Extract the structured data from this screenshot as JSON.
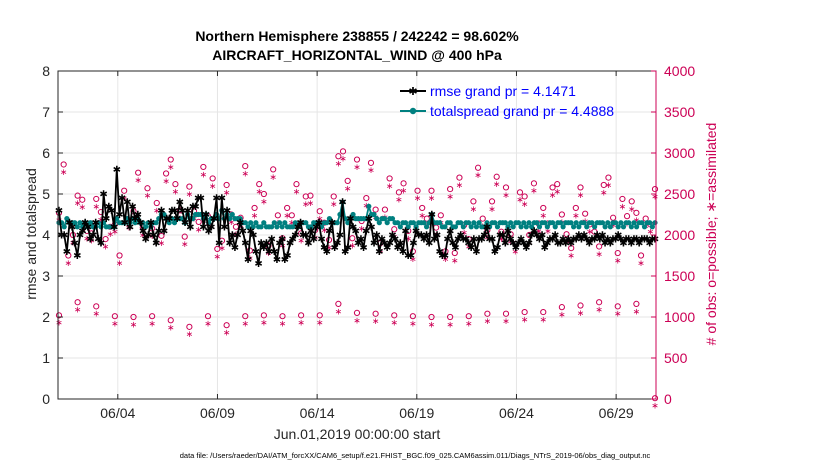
{
  "chart_data": {
    "type": "line",
    "title": "Northern Hemisphere 238855 / 242242 = 98.602%",
    "subtitle": "AIRCRAFT_HORIZONTAL_WIND @ 400 hPa",
    "xlabel": "Jun.01,2019 00:00:00 start",
    "ylabel": "rmse and totalspread",
    "ylabel_right": "# of obs: o=possible; ∗=assimilated",
    "footnote": "data file: /Users/raeder/DAI/ATM_forcXX/CAM6_setup/f.e21.FHIST_BGC.f09_025.CAM6assim.011/Diags_NTrS_2019-06/obs_diag_output.nc",
    "xlim": [
      1.0,
      31.0
    ],
    "ylim": [
      0,
      8
    ],
    "ylim_right": [
      0,
      4000
    ],
    "x_tick_values": [
      4,
      9,
      14,
      19,
      24,
      29
    ],
    "x_tick_labels": [
      "06/04",
      "06/09",
      "06/14",
      "06/19",
      "06/24",
      "06/29"
    ],
    "y_ticks": [
      "0",
      "1",
      "2",
      "3",
      "4",
      "5",
      "6",
      "7",
      "8"
    ],
    "y_ticks_right": [
      "0",
      "500",
      "1000",
      "1500",
      "2000",
      "2500",
      "3000",
      "3500",
      "4000"
    ],
    "legend_position": "top-right",
    "colors": {
      "rmse": "#000000",
      "totalspread": "#008080",
      "obs": "#cc0055",
      "legend_text": "#0000ff",
      "grid": "#e6e6e6",
      "axis": "#262626"
    },
    "series": [
      {
        "name": "rmse grand pr = 4.1471",
        "values": [
          4.6,
          4.0,
          4.0,
          3.6,
          4.3,
          4.2,
          3.8,
          3.5,
          4.0,
          4.1,
          4.3,
          4.2,
          3.9,
          4.0,
          4.3,
          3.9,
          3.8,
          5.0,
          4.4,
          4.7,
          4.6,
          4.2,
          5.6,
          4.5,
          4.9,
          4.3,
          4.8,
          4.2,
          4.7,
          4.4,
          4.5,
          4.3,
          4.1,
          3.9,
          4.0,
          4.3,
          4.0,
          3.8,
          4.1,
          4.6,
          4.1,
          4.4,
          4.4,
          4.6,
          4.6,
          4.4,
          4.8,
          4.6,
          4.3,
          4.6,
          4.2,
          4.7,
          4.7,
          4.9,
          4.9,
          4.2,
          4.5,
          4.1,
          4.2,
          4.4,
          4.9,
          3.8,
          4.9,
          4.2,
          4.6,
          3.8,
          4.0,
          3.7,
          4.0,
          4.3,
          4.1,
          3.8,
          3.4,
          4.1,
          4.0,
          3.6,
          3.3,
          3.8,
          3.7,
          3.8,
          3.6,
          3.9,
          3.6,
          3.4,
          3.8,
          3.9,
          3.4,
          3.5,
          3.8,
          3.9,
          4.0,
          4.2,
          4.3,
          4.0,
          4.0,
          3.8,
          4.1,
          3.9,
          4.2,
          4.3,
          3.9,
          3.7,
          3.6,
          4.1,
          4.3,
          3.7,
          3.8,
          4.0,
          4.8,
          3.6,
          3.7,
          4.4,
          4.2,
          4.1,
          3.8,
          3.9,
          3.7,
          4.1,
          4.4,
          4.2,
          3.8,
          4.0,
          3.6,
          3.9,
          3.8,
          3.7,
          3.8,
          4.0,
          3.9,
          3.7,
          3.8,
          3.6,
          4.1,
          3.5,
          3.5,
          3.8,
          4.1,
          4.0,
          4.0,
          3.9,
          4.0,
          3.8,
          4.5,
          3.9,
          4.0,
          3.6,
          3.5,
          3.5,
          3.9,
          4.1,
          3.8,
          3.7,
          3.9,
          4.0,
          3.9,
          3.9,
          3.8,
          3.7,
          3.9,
          3.6,
          3.9,
          3.9,
          4.0,
          4.2,
          3.9,
          3.9,
          3.6,
          3.7,
          4.0,
          4.0,
          3.8,
          4.1,
          3.9,
          3.8,
          3.7,
          3.8,
          3.9,
          3.8,
          3.7,
          3.8,
          4.0,
          4.1,
          4.0,
          3.9,
          4.0,
          3.7,
          3.8,
          3.9,
          3.9,
          4.0,
          3.8,
          3.8,
          3.9,
          3.8,
          3.9,
          3.8,
          3.9,
          3.9,
          4.0,
          3.9,
          4.0,
          3.9,
          3.8,
          3.9,
          3.9,
          4.0,
          3.9,
          4.0,
          3.8,
          3.9,
          3.8,
          3.9,
          3.9,
          4.0,
          3.9,
          3.8,
          3.9,
          3.9,
          3.8,
          3.9,
          3.9,
          3.8,
          3.9,
          3.9,
          3.9,
          3.8,
          3.9,
          3.9
        ]
      },
      {
        "name": "totalspread grand pr = 4.4888",
        "values": [
          4.3,
          4.3,
          4.2,
          4.4,
          4.3,
          4.3,
          4.3,
          4.2,
          4.3,
          4.2,
          4.3,
          4.2,
          4.3,
          4.2,
          4.2,
          4.3,
          4.2,
          4.3,
          4.2,
          4.2,
          4.2,
          4.2,
          4.4,
          4.3,
          4.3,
          4.3,
          4.4,
          4.3,
          4.4,
          4.3,
          4.4,
          4.3,
          4.3,
          4.2,
          4.3,
          4.2,
          4.3,
          4.3,
          4.4,
          4.5,
          4.5,
          4.4,
          4.3,
          4.4,
          4.3,
          4.4,
          4.4,
          4.4,
          4.3,
          4.5,
          4.4,
          4.4,
          4.5,
          4.5,
          4.5,
          4.4,
          4.5,
          4.3,
          4.4,
          4.4,
          4.5,
          4.4,
          4.6,
          4.4,
          4.5,
          4.4,
          4.5,
          4.4,
          4.4,
          4.4,
          4.3,
          4.3,
          4.2,
          4.3,
          4.2,
          4.3,
          4.2,
          4.2,
          4.3,
          4.2,
          4.2,
          4.2,
          4.3,
          4.2,
          4.3,
          4.2,
          4.3,
          4.2,
          4.2,
          4.2,
          4.3,
          4.2,
          4.3,
          4.3,
          4.3,
          4.2,
          4.2,
          4.3,
          4.3,
          4.3,
          4.2,
          4.3,
          4.3,
          4.4,
          4.3,
          4.3,
          4.3,
          4.5,
          4.8,
          4.4,
          4.3,
          4.4,
          4.5,
          4.4,
          4.4,
          4.4,
          4.4,
          4.4,
          4.7,
          4.5,
          4.5,
          4.4,
          4.3,
          4.4,
          4.4,
          4.3,
          4.4,
          4.4,
          4.3,
          4.3,
          4.2,
          4.3,
          4.3,
          4.2,
          4.3,
          4.3,
          4.2,
          4.3,
          4.3,
          4.3,
          4.2,
          4.3,
          4.5,
          4.3,
          4.3,
          4.3,
          4.2,
          4.2,
          4.3,
          4.3,
          4.2,
          4.2,
          4.3,
          4.3,
          4.2,
          4.3,
          4.3,
          4.2,
          4.3,
          4.2,
          4.3,
          4.2,
          4.2,
          4.3,
          4.2,
          4.3,
          4.3,
          4.2,
          4.3,
          4.3,
          4.3,
          4.2,
          4.3,
          4.2,
          4.3,
          4.3,
          4.2,
          4.3,
          4.2,
          4.3,
          4.2,
          4.3,
          4.3,
          4.2,
          4.3,
          4.3,
          4.2,
          4.3,
          4.3,
          4.2,
          4.3,
          4.3,
          4.2,
          4.3,
          4.3,
          4.3,
          4.2,
          4.3,
          4.2,
          4.3,
          4.3,
          4.2,
          4.3,
          4.3,
          4.2,
          4.3,
          4.3,
          4.3,
          4.2,
          4.3,
          4.2,
          4.3,
          4.3,
          4.2,
          4.3,
          4.2,
          4.3,
          4.3,
          4.2,
          4.3,
          4.2,
          4.3,
          4.3,
          4.2,
          4.3,
          4.3,
          4.2,
          4.3
        ]
      }
    ],
    "obs_possible": [
      2270,
      2860,
      1750,
      2000,
      2480,
      2430,
      2050,
      2020,
      2440,
      2280,
      1950,
      2100,
      2130,
      1750,
      2540,
      2180,
      2290,
      2760,
      2090,
      2570,
      2080,
      2390,
      1990,
      2750,
      2920,
      2620,
      2300,
      1980,
      2590,
      2290,
      2160,
      2830,
      2230,
      2690,
      1830,
      1930,
      2610,
      2250,
      2100,
      2210,
      2840,
      1810,
      2330,
      2620,
      2500,
      1870,
      2800,
      2240,
      1960,
      2330,
      2240,
      2620,
      2020,
      2470,
      2480,
      2060,
      2290,
      2150,
      1940,
      2470,
      2960,
      3020,
      2660,
      1960,
      2920,
      2170,
      2450,
      2880,
      2310,
      1900,
      2310,
      2690,
      2070,
      2520,
      2630,
      2050,
      1800,
      2540,
      2330,
      2200,
      2540,
      2090,
      2240,
      1800,
      2560,
      1780,
      2700,
      2120,
      1950,
      2410,
      2820,
      2200,
      2060,
      2410,
      2710,
      2040,
      2580,
      2010,
      1890,
      2520,
      2470,
      2000,
      2630,
      2140,
      2330,
      2140,
      2580,
      2620,
      2250,
      2010,
      1840,
      2330,
      2580,
      2260,
      2130,
      2040,
      1860,
      2610,
      2700,
      2210,
      1780,
      2440,
      2230,
      2410,
      2270,
      1750,
      2200,
      2130,
      2560
    ],
    "obs_possible_low": [
      1020,
      1180,
      1130,
      1010,
      1000,
      1010,
      960,
      880,
      1010,
      900,
      1010,
      1020,
      1010,
      1020,
      1020,
      1160,
      1050,
      1040,
      1020,
      1010,
      1000,
      1000,
      1010,
      1040,
      1040,
      1060,
      1060,
      1120,
      1140,
      1180,
      1130,
      1160,
      10
    ],
    "obs_assimilated_note": "assimilated counts nearly equal possible counts"
  }
}
